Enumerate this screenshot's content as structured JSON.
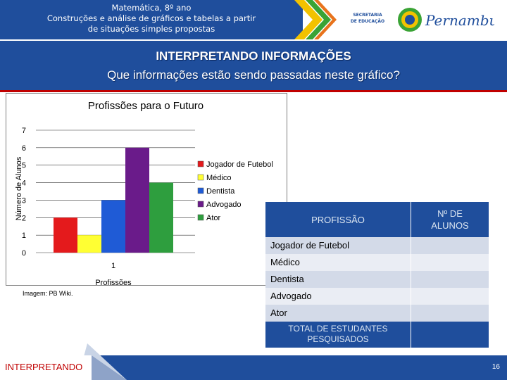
{
  "header": {
    "title_lines": [
      "Matemática, 8º ano",
      "Construções e análise de gráficos e tabelas a partir",
      "de situações simples propostas"
    ],
    "seal_lines": [
      "SECRETARIA",
      "DE EDUCAÇÃO"
    ],
    "logo_text": "Pernambuco"
  },
  "band": {
    "title": "INTERPRETANDO INFORMAÇÕES",
    "subtitle": "Que informações estão sendo passadas neste gráfico?"
  },
  "chart_data": {
    "type": "bar",
    "title": "Profissões para o Futuro",
    "xlabel": "Profissões",
    "ylabel": "Número de Alunos",
    "categories": [
      "1"
    ],
    "ylim": [
      0,
      7
    ],
    "yticks": [
      "0",
      "1",
      "2",
      "3",
      "4",
      "5",
      "6",
      "7"
    ],
    "grid": true,
    "legend_position": "right",
    "series": [
      {
        "name": "Jogador de Futebol",
        "values": [
          2
        ],
        "color": "#e41a1c"
      },
      {
        "name": "Médico",
        "values": [
          1
        ],
        "color": "#ffff33"
      },
      {
        "name": "Dentista",
        "values": [
          3
        ],
        "color": "#1f5bd6"
      },
      {
        "name": "Advogado",
        "values": [
          6
        ],
        "color": "#6a1b8a"
      },
      {
        "name": "Ator",
        "values": [
          4
        ],
        "color": "#2e9e3e"
      }
    ]
  },
  "credit": "Imagem: PB Wiki.",
  "table": {
    "header_left": "PROFISSÃO",
    "header_right_lines": [
      "Nº DE",
      "ALUNOS"
    ],
    "rows": [
      "Jogador de Futebol",
      "Médico",
      "Dentista",
      "Advogado",
      "Ator"
    ],
    "row_colors": [
      "#d3dae8",
      "#eaedf4"
    ],
    "total_lines": [
      "TOTAL DE ESTUDANTES",
      "PESQUISADOS"
    ]
  },
  "footer": {
    "label": "INTERPRETANDO",
    "page": "16"
  }
}
